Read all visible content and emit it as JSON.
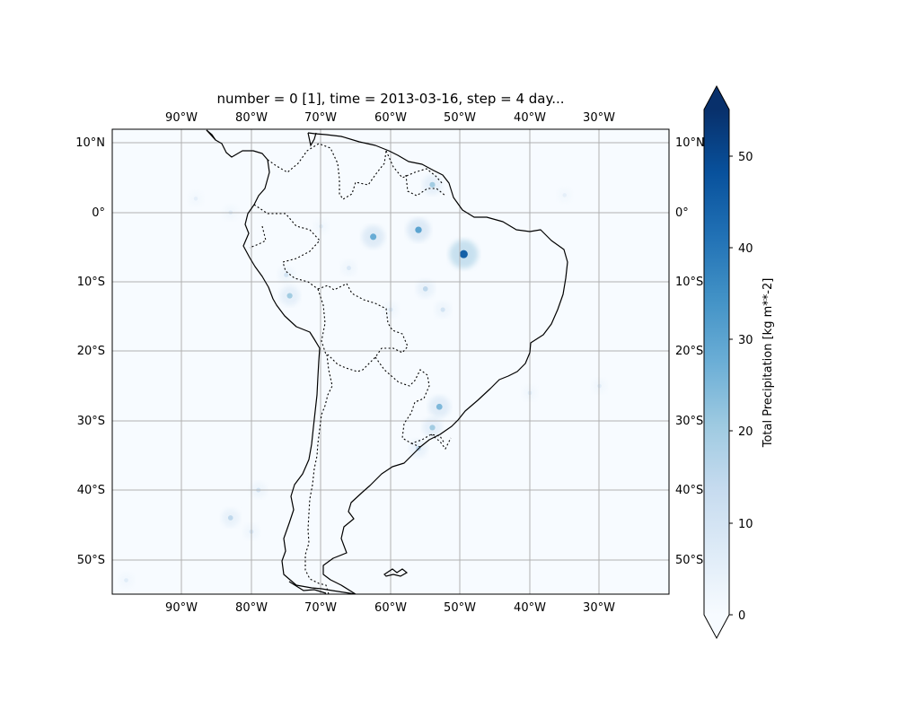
{
  "title": "number = 0 [1], time = 2013-03-16, step = 4 day...",
  "map": {
    "extent": {
      "lon": [
        -100,
        -20
      ],
      "lat": [
        -55,
        12
      ]
    },
    "lon_ticks": [
      -90,
      -80,
      -70,
      -60,
      -50,
      -40,
      -30
    ],
    "lon_labels": [
      "90°W",
      "80°W",
      "70°W",
      "60°W",
      "50°W",
      "40°W",
      "30°W"
    ],
    "lat_ticks": [
      10,
      0,
      -10,
      -20,
      -30,
      -40,
      -50
    ],
    "lat_labels": [
      "10°N",
      "0°",
      "10°S",
      "20°S",
      "30°S",
      "40°S",
      "50°S"
    ],
    "gridlines": true,
    "coastlines": true,
    "borders": "dotted",
    "colormap": "Blues",
    "land_color": "#f7fbff",
    "grid_color": "#b0b0b0",
    "coastline_color": "#000000",
    "precip_features": [
      {
        "lon": -53,
        "lat": -28,
        "value": 25
      },
      {
        "lon": -54,
        "lat": -31,
        "value": 20
      },
      {
        "lon": -56,
        "lat": -34,
        "value": 15
      },
      {
        "lon": -49.5,
        "lat": -6,
        "value": 45
      },
      {
        "lon": -56,
        "lat": -2.5,
        "value": 30
      },
      {
        "lon": -62.5,
        "lat": -3.5,
        "value": 28
      },
      {
        "lon": -55,
        "lat": -11,
        "value": 15
      },
      {
        "lon": -74.5,
        "lat": -12,
        "value": 20
      },
      {
        "lon": -75,
        "lat": -9,
        "value": 10
      },
      {
        "lon": -52.5,
        "lat": -14,
        "value": 10
      },
      {
        "lon": -54,
        "lat": 4,
        "value": 20
      },
      {
        "lon": -83,
        "lat": -44,
        "value": 15
      },
      {
        "lon": -79,
        "lat": -40,
        "value": 10
      },
      {
        "lon": -80,
        "lat": -46,
        "value": 8
      },
      {
        "lon": -83,
        "lat": 0,
        "value": 6
      },
      {
        "lon": -88,
        "lat": 2,
        "value": 5
      },
      {
        "lon": -40,
        "lat": -26,
        "value": 6
      },
      {
        "lon": -30,
        "lat": -25,
        "value": 6
      },
      {
        "lon": -35,
        "lat": 2.5,
        "value": 5
      },
      {
        "lon": -60,
        "lat": -14,
        "value": 8
      },
      {
        "lon": -66,
        "lat": -8,
        "value": 8
      },
      {
        "lon": -70,
        "lat": -2,
        "value": 6
      },
      {
        "lon": -98,
        "lat": -53,
        "value": 6
      }
    ]
  },
  "colorbar": {
    "label": "Total Precipitation [kg m**-2]",
    "min": 0,
    "max": 55,
    "ticks": [
      0,
      10,
      20,
      30,
      40,
      50
    ],
    "tick_labels": [
      "0",
      "10",
      "20",
      "30",
      "40",
      "50"
    ],
    "extend": "both"
  }
}
